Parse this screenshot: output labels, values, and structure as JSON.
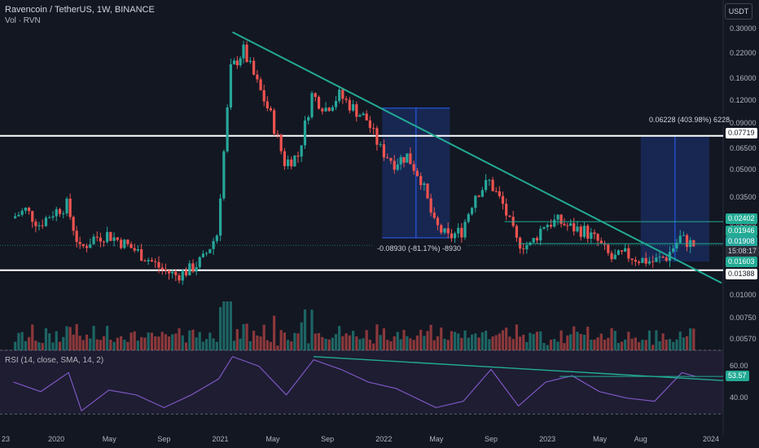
{
  "header": {
    "title": "Ravencoin / TetherUS, 1W, BINANCE",
    "vol_label": "Vol · RVN",
    "unit_button": "USDT"
  },
  "rsi_label": "RSI (14, close, SMA, 14, 2)",
  "price_axis_ticks": [
    "0.30000",
    "0.22000",
    "0.16000",
    "0.12000",
    "0.09000",
    "0.06500",
    "0.05000",
    "0.03500",
    "0.02500",
    "0.01000",
    "0.00750",
    "0.00570"
  ],
  "rsi_axis_ticks": [
    "60.00",
    "40.00"
  ],
  "x_axis_ticks": [
    "23",
    "2020",
    "May",
    "Sep",
    "2021",
    "May",
    "Sep",
    "2022",
    "May",
    "Sep",
    "2023",
    "May",
    "Aug",
    "2024"
  ],
  "price_tags": [
    {
      "text": "0.07719",
      "style": "light"
    },
    {
      "text": "0.02402",
      "style": "teal"
    },
    {
      "text": "0.01946",
      "style": "teal"
    },
    {
      "text": "0.01908",
      "style": "green"
    },
    {
      "text": "15:08:17",
      "style": "dark"
    },
    {
      "text": "0.01603",
      "style": "teal"
    },
    {
      "text": "0.01388",
      "style": "light"
    }
  ],
  "rsi_tag": "53.57",
  "measure_labels": {
    "down": "-0.08930 (-81.17%) -8930",
    "up": "0.06228 (403.98%) 6228"
  },
  "colors": {
    "up": "#26a69a",
    "down": "#ef5350",
    "trend": "#22ab94",
    "rsi": "#7e57c2",
    "measure": "#2962ff"
  },
  "chart_data": {
    "type": "candlestick",
    "symbol": "RVNUSDT",
    "interval": "1W",
    "y_scale": "log",
    "ylim": [
      0.005,
      0.32
    ],
    "rsi_ylim": [
      25,
      70
    ],
    "horizontal_levels": [
      0.07719,
      0.01388
    ],
    "last_price": 0.01908,
    "close_path": [
      [
        "2019-10",
        0.027
      ],
      [
        "2019-11",
        0.03
      ],
      [
        "2019-12",
        0.025
      ],
      [
        "2020-01",
        0.029
      ],
      [
        "2020-02",
        0.032
      ],
      [
        "2020-03",
        0.018
      ],
      [
        "2020-04",
        0.021
      ],
      [
        "2020-05",
        0.022
      ],
      [
        "2020-06",
        0.02
      ],
      [
        "2020-07",
        0.018
      ],
      [
        "2020-08",
        0.016
      ],
      [
        "2020-09",
        0.014
      ],
      [
        "2020-10",
        0.013
      ],
      [
        "2020-11",
        0.014
      ],
      [
        "2020-12",
        0.016
      ],
      [
        "2021-01",
        0.022
      ],
      [
        "2021-02",
        0.18
      ],
      [
        "2021-03",
        0.23
      ],
      [
        "2021-04",
        0.15
      ],
      [
        "2021-05",
        0.1
      ],
      [
        "2021-06",
        0.055
      ],
      [
        "2021-07",
        0.06
      ],
      [
        "2021-08",
        0.13
      ],
      [
        "2021-09",
        0.11
      ],
      [
        "2021-10",
        0.13
      ],
      [
        "2021-11",
        0.11
      ],
      [
        "2021-12",
        0.095
      ],
      [
        "2022-01",
        0.065
      ],
      [
        "2022-02",
        0.055
      ],
      [
        "2022-03",
        0.06
      ],
      [
        "2022-04",
        0.045
      ],
      [
        "2022-05",
        0.025
      ],
      [
        "2022-06",
        0.021
      ],
      [
        "2022-07",
        0.023
      ],
      [
        "2022-08",
        0.037
      ],
      [
        "2022-09",
        0.043
      ],
      [
        "2022-10",
        0.032
      ],
      [
        "2022-11",
        0.02
      ],
      [
        "2022-12",
        0.019
      ],
      [
        "2023-01",
        0.025
      ],
      [
        "2023-02",
        0.026
      ],
      [
        "2023-03",
        0.024
      ],
      [
        "2023-04",
        0.023
      ],
      [
        "2023-05",
        0.02
      ],
      [
        "2023-06",
        0.016
      ],
      [
        "2023-07",
        0.017
      ],
      [
        "2023-08",
        0.016
      ],
      [
        "2023-09",
        0.0155
      ],
      [
        "2023-10",
        0.0165
      ],
      [
        "2023-11",
        0.021
      ],
      [
        "2023-12",
        0.01908
      ]
    ],
    "rsi_points": [
      [
        "2019-10",
        50
      ],
      [
        "2019-12",
        44
      ],
      [
        "2020-02",
        56
      ],
      [
        "2020-03",
        32
      ],
      [
        "2020-05",
        45
      ],
      [
        "2020-07",
        42
      ],
      [
        "2020-09",
        34
      ],
      [
        "2020-11",
        42
      ],
      [
        "2021-01",
        52
      ],
      [
        "2021-02",
        66
      ],
      [
        "2021-04",
        60
      ],
      [
        "2021-06",
        42
      ],
      [
        "2021-08",
        64
      ],
      [
        "2021-10",
        58
      ],
      [
        "2021-12",
        50
      ],
      [
        "2022-02",
        46
      ],
      [
        "2022-05",
        34
      ],
      [
        "2022-07",
        38
      ],
      [
        "2022-09",
        58
      ],
      [
        "2022-11",
        35
      ],
      [
        "2023-01",
        50
      ],
      [
        "2023-03",
        54
      ],
      [
        "2023-05",
        44
      ],
      [
        "2023-07",
        40
      ],
      [
        "2023-09",
        38
      ],
      [
        "2023-11",
        56
      ],
      [
        "2023-12",
        53.57
      ]
    ],
    "rsi_last": 53.57,
    "rsi_levels": [
      70,
      30
    ]
  }
}
